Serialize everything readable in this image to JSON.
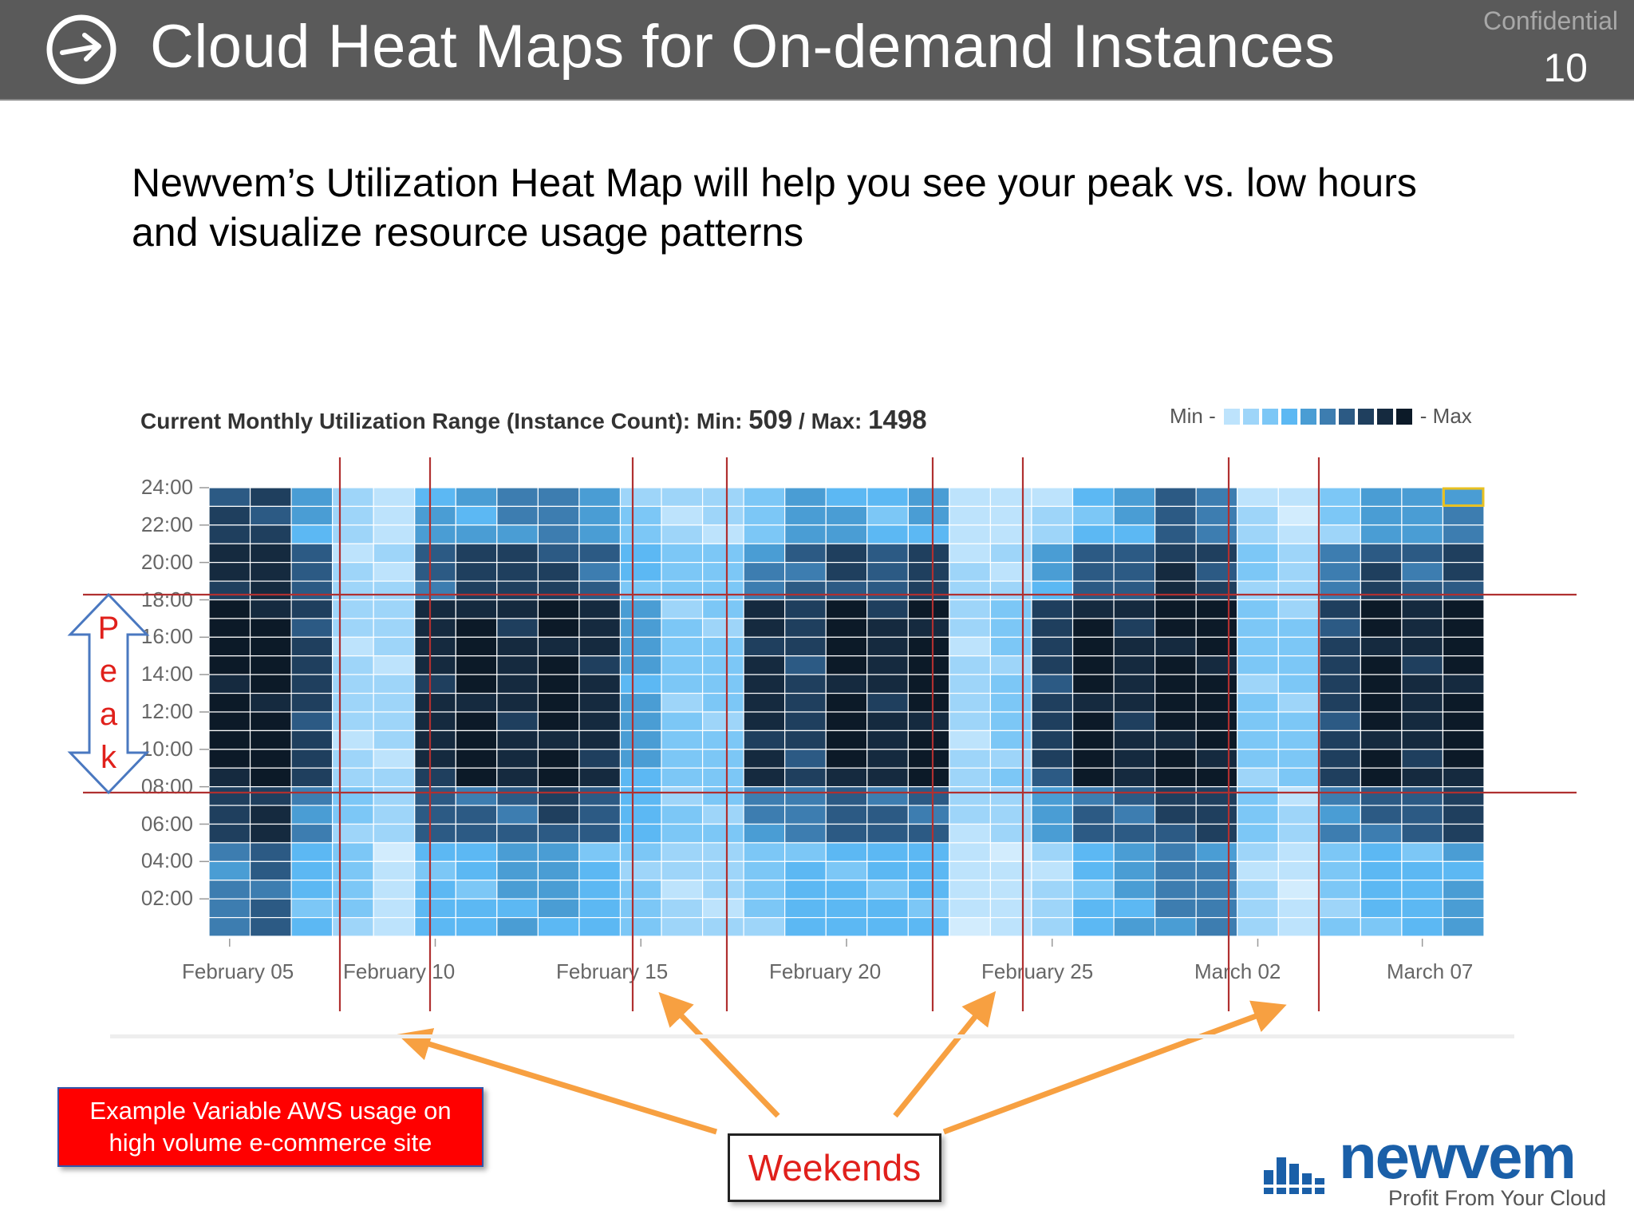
{
  "header": {
    "title": "Cloud Heat Maps for On-demand Instances",
    "confidential": "Confidential",
    "page_number": "10",
    "logo_icon": "arrow-circle-icon"
  },
  "subtitle": {
    "line1": "Newvem’s Utilization Heat Map will help you see your peak vs. low hours",
    "line2": "and visualize resource usage patterns"
  },
  "chart_data": {
    "type": "heatmap",
    "title_prefix": "Current Monthly Utilization Range (Instance Count): Min: ",
    "min_value": "509",
    "separator": " / Max: ",
    "max_value": "1498",
    "legend": {
      "min_label": "Min -",
      "max_label": "- Max",
      "swatch_count": 10
    },
    "y_tick_labels": [
      "24:00",
      "22:00",
      "20:00",
      "18:00",
      "16:00",
      "14:00",
      "12:00",
      "10:00",
      "08:00",
      "06:00",
      "04:00",
      "02:00"
    ],
    "x_tick_labels": [
      "February 05",
      "February 10",
      "February 15",
      "February 20",
      "February 25",
      "March 02",
      "March 07"
    ],
    "palette": [
      "#d2ecfd",
      "#bde3fc",
      "#9ed5f9",
      "#7cc7f6",
      "#5cb8f3",
      "#4a9dd4",
      "#3d7db0",
      "#2c5a84",
      "#1f3f5e",
      "#152a3f",
      "#0c1a28"
    ],
    "columns": [
      {
        "base": 8,
        "peak": 10,
        "lowHour": 6
      },
      {
        "base": 8,
        "peak": 10,
        "lowHour": 7
      },
      {
        "base": 5,
        "peak": 8,
        "lowHour": 4
      },
      {
        "base": 2,
        "peak": 2,
        "lowHour": 3
      },
      {
        "base": 1,
        "peak": 2,
        "lowHour": 1
      },
      {
        "base": 5,
        "peak": 9,
        "lowHour": 4
      },
      {
        "base": 5,
        "peak": 10,
        "lowHour": 4
      },
      {
        "base": 6,
        "peak": 9,
        "lowHour": 5
      },
      {
        "base": 6,
        "peak": 10,
        "lowHour": 5
      },
      {
        "base": 5,
        "peak": 9,
        "lowHour": 4
      },
      {
        "base": 3,
        "peak": 5,
        "lowHour": 3
      },
      {
        "base": 2,
        "peak": 3,
        "lowHour": 2
      },
      {
        "base": 2,
        "peak": 3,
        "lowHour": 2
      },
      {
        "base": 3,
        "peak": 9,
        "lowHour": 3
      },
      {
        "base": 5,
        "peak": 8,
        "lowHour": 4
      },
      {
        "base": 5,
        "peak": 10,
        "lowHour": 4
      },
      {
        "base": 4,
        "peak": 9,
        "lowHour": 4
      },
      {
        "base": 5,
        "peak": 10,
        "lowHour": 4
      },
      {
        "base": 1,
        "peak": 2,
        "lowHour": 1
      },
      {
        "base": 1,
        "peak": 3,
        "lowHour": 1
      },
      {
        "base": 2,
        "peak": 8,
        "lowHour": 2
      },
      {
        "base": 4,
        "peak": 10,
        "lowHour": 4
      },
      {
        "base": 5,
        "peak": 9,
        "lowHour": 5
      },
      {
        "base": 7,
        "peak": 10,
        "lowHour": 6
      },
      {
        "base": 6,
        "peak": 10,
        "lowHour": 6
      },
      {
        "base": 2,
        "peak": 3,
        "lowHour": 2
      },
      {
        "base": 1,
        "peak": 3,
        "lowHour": 1
      },
      {
        "base": 3,
        "peak": 8,
        "lowHour": 3
      },
      {
        "base": 5,
        "peak": 10,
        "lowHour": 4
      },
      {
        "base": 5,
        "peak": 9,
        "lowHour": 4
      },
      {
        "base": 6,
        "peak": 10,
        "lowHour": 5
      }
    ]
  },
  "annotations": {
    "peak_letters": [
      "P",
      "e",
      "a",
      "k"
    ],
    "example_box_line1": "Example Variable AWS usage on",
    "example_box_line2": "high volume e-commerce site",
    "weekends_label": "Weekends"
  },
  "brand": {
    "name": "newvem",
    "tagline": "Profit From Your Cloud",
    "logo_icon": "building-bars-icon"
  },
  "colors": {
    "header_bg": "#5a5a5a",
    "annotation_red": "#e0201b",
    "arrow_orange": "#f7a041",
    "guide_line": "#b03030",
    "peak_arrow_blue": "#4a78c0"
  }
}
